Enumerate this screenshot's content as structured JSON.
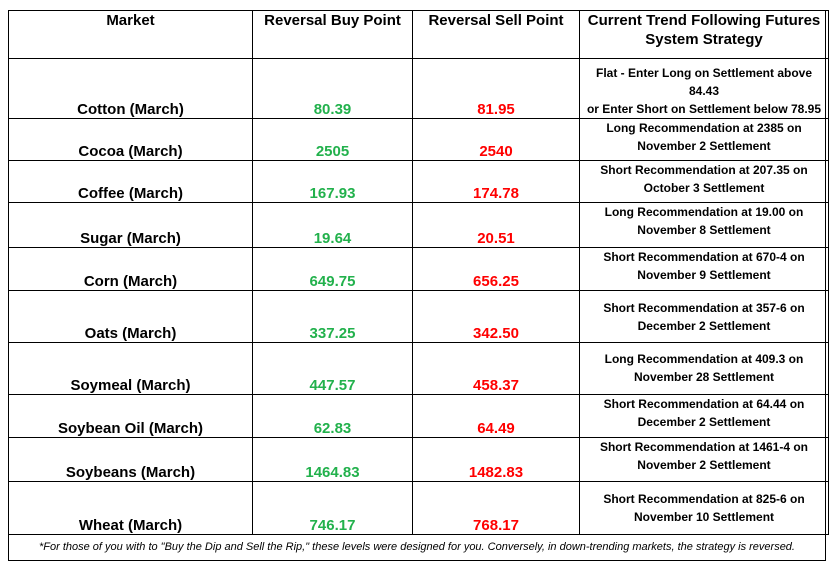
{
  "headers": {
    "market": "Market",
    "buy": "Reversal Buy Point",
    "sell": "Reversal Sell Point",
    "strategy_line1": "Current Trend Following Futures",
    "strategy_line2": "System Strategy"
  },
  "rows": [
    {
      "market": "Cotton (March)",
      "buy": "80.39",
      "sell": "81.95",
      "strategy_line1": "Flat - Enter Long on Settlement above 84.43",
      "strategy_line2": "or Enter Short on Settlement below 78.95"
    },
    {
      "market": "Cocoa (March)",
      "buy": "2505",
      "sell": "2540",
      "strategy_line1": "Long Recommendation at 2385 on",
      "strategy_line2": "November 2 Settlement"
    },
    {
      "market": "Coffee (March)",
      "buy": "167.93",
      "sell": "174.78",
      "strategy_line1": "Short Recommendation at 207.35 on",
      "strategy_line2": "October 3 Settlement"
    },
    {
      "market": "Sugar (March)",
      "buy": "19.64",
      "sell": "20.51",
      "strategy_line1": "Long Recommendation at 19.00 on",
      "strategy_line2": "November 8 Settlement"
    },
    {
      "market": "Corn (March)",
      "buy": "649.75",
      "sell": "656.25",
      "strategy_line1": "Short Recommendation at 670-4 on",
      "strategy_line2": "November 9 Settlement"
    },
    {
      "market": "Oats (March)",
      "buy": "337.25",
      "sell": "342.50",
      "strategy_line1": "Short Recommendation at 357-6 on",
      "strategy_line2": "December 2 Settlement"
    },
    {
      "market": "Soymeal (March)",
      "buy": "447.57",
      "sell": "458.37",
      "strategy_line1": "Long Recommendation at 409.3 on",
      "strategy_line2": "November 28 Settlement"
    },
    {
      "market": "Soybean Oil (March)",
      "buy": "62.83",
      "sell": "64.49",
      "strategy_line1": "Short Recommendation at 64.44 on",
      "strategy_line2": "December 2 Settlement"
    },
    {
      "market": "Soybeans (March)",
      "buy": "1464.83",
      "sell": "1482.83",
      "strategy_line1": "Short Recommendation at 1461-4 on",
      "strategy_line2": "November 2 Settlement"
    },
    {
      "market": "Wheat (March)",
      "buy": "746.17",
      "sell": "768.17",
      "strategy_line1": "Short Recommendation at 825-6 on",
      "strategy_line2": "November 10 Settlement"
    }
  ],
  "footnote": "*For those of you with to \"Buy the Dip and Sell the Rip,\" these levels were designed for you. Conversely, in down-trending markets, the strategy is reversed.",
  "colors": {
    "buy": "#22b14c",
    "sell": "#ff0000",
    "text": "#000000",
    "border": "#000000"
  }
}
